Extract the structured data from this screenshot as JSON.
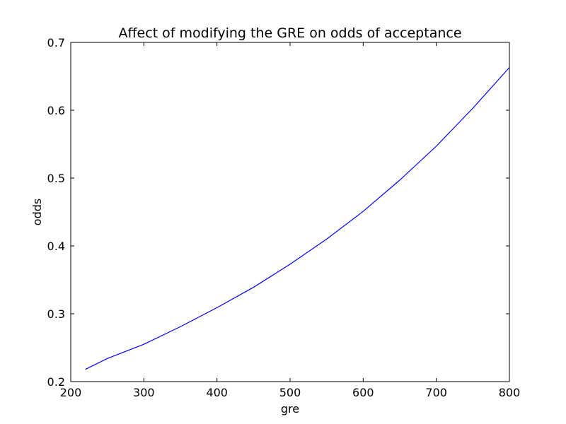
{
  "chart_data": {
    "type": "line",
    "title": "Affect of modifying the GRE on odds of acceptance",
    "xlabel": "gre",
    "ylabel": "odds",
    "xlim": [
      200,
      800
    ],
    "ylim": [
      0.2,
      0.7
    ],
    "xticks": [
      200,
      300,
      400,
      500,
      600,
      700,
      800
    ],
    "yticks": [
      0.2,
      0.3,
      0.4,
      0.5,
      0.6,
      0.7
    ],
    "xtick_labels": [
      "200",
      "300",
      "400",
      "500",
      "600",
      "700",
      "800"
    ],
    "ytick_labels": [
      "0.2",
      "0.3",
      "0.4",
      "0.5",
      "0.6",
      "0.7"
    ],
    "grid": false,
    "series": [
      {
        "color": "#0000ff",
        "x": [
          220,
          250,
          300,
          350,
          400,
          450,
          500,
          550,
          600,
          650,
          700,
          750,
          800
        ],
        "y": [
          0.218,
          0.234,
          0.255,
          0.281,
          0.309,
          0.339,
          0.373,
          0.41,
          0.451,
          0.497,
          0.547,
          0.603,
          0.663
        ]
      }
    ]
  }
}
